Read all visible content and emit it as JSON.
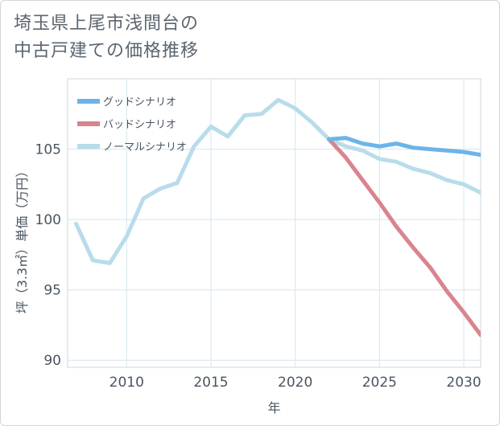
{
  "title_lines": [
    "埼玉県上尾市浅間台の",
    "中古戸建ての価格推移"
  ],
  "chart_data": {
    "type": "line",
    "xlabel": "年",
    "ylabel": "坪（3.3㎡）単価（万円）",
    "xlim": [
      2006.5,
      2031
    ],
    "ylim": [
      89.5,
      110
    ],
    "xticks": [
      2010,
      2015,
      2020,
      2025,
      2030
    ],
    "yticks": [
      90,
      95,
      100,
      105
    ],
    "grid": true,
    "legend_position": "top-left",
    "series": [
      {
        "name": "グッドシナリオ",
        "color": "#6cb4e8",
        "x": [
          2022,
          2023,
          2024,
          2025,
          2026,
          2027,
          2028,
          2029,
          2030,
          2031
        ],
        "values": [
          105.7,
          105.8,
          105.4,
          105.2,
          105.4,
          105.1,
          105.0,
          104.9,
          104.8,
          104.6
        ]
      },
      {
        "name": "バッドシナリオ",
        "color": "#d9848e",
        "x": [
          2022,
          2023,
          2024,
          2025,
          2026,
          2027,
          2028,
          2029,
          2030,
          2031
        ],
        "values": [
          105.7,
          104.4,
          102.8,
          101.2,
          99.5,
          98.0,
          96.6,
          94.9,
          93.4,
          91.8
        ]
      },
      {
        "name": "ノーマルシナリオ",
        "color": "#b9dcea",
        "x": [
          2007,
          2008,
          2009,
          2010,
          2011,
          2012,
          2013,
          2014,
          2015,
          2016,
          2017,
          2018,
          2019,
          2020,
          2021,
          2022,
          2023,
          2024,
          2025,
          2026,
          2027,
          2028,
          2029,
          2030,
          2031
        ],
        "values": [
          99.7,
          97.1,
          96.9,
          98.8,
          101.5,
          102.2,
          102.6,
          105.2,
          106.6,
          105.9,
          107.4,
          107.5,
          108.5,
          107.9,
          106.9,
          105.7,
          105.2,
          104.9,
          104.3,
          104.1,
          103.6,
          103.3,
          102.8,
          102.5,
          101.9
        ]
      }
    ]
  }
}
